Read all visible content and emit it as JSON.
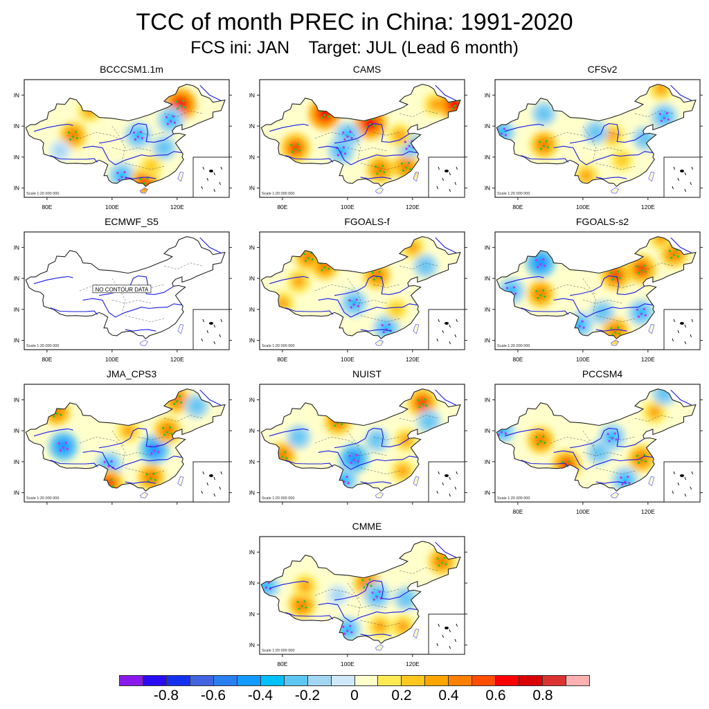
{
  "figure": {
    "title": "TCC of month PREC in China: 1991-2020",
    "subtitle": "FCS ini: JAN    Target: JUL (Lead 6 month)"
  },
  "chart_data": {
    "type": "heatmap",
    "description": "Temporal correlation coefficient (TCC) maps of July precipitation forecasts over China, initialized January (lead 6 months), 1991-2020",
    "xlim": [
      73,
      136
    ],
    "ylim": [
      17,
      55
    ],
    "x_ticks": [
      "80E",
      "100E",
      "120E"
    ],
    "x_tick_values": [
      80,
      100,
      120
    ],
    "y_ticks": [
      "20N",
      "30N",
      "40N",
      "50N"
    ],
    "y_tick_values": [
      20,
      30,
      40,
      50
    ],
    "scale_text": "Scale 1:20 000 000",
    "no_data_text": "NO CONTOUR DATA",
    "panels": [
      {
        "name": "BCCCSM1.1m",
        "show_xticks": true,
        "has_data": true,
        "features": [
          {
            "lon": 121,
            "lat": 47,
            "value": 0.6
          },
          {
            "lon": 88,
            "lat": 37,
            "value": 0.4
          },
          {
            "lon": 93,
            "lat": 45,
            "value": 0.3
          },
          {
            "lon": 108,
            "lat": 37,
            "value": -0.4
          },
          {
            "lon": 118,
            "lat": 42,
            "value": -0.4
          },
          {
            "lon": 116,
            "lat": 33,
            "value": -0.3
          },
          {
            "lon": 103,
            "lat": 24,
            "value": -0.4
          },
          {
            "lon": 110,
            "lat": 22,
            "value": 0.5
          },
          {
            "lon": 112,
            "lat": 27,
            "value": 0.2
          },
          {
            "lon": 84,
            "lat": 32,
            "value": -0.2
          }
        ]
      },
      {
        "name": "CAMS",
        "show_xticks": true,
        "has_data": true,
        "features": [
          {
            "lon": 84,
            "lat": 33,
            "value": 0.5
          },
          {
            "lon": 93,
            "lat": 44,
            "value": 0.6
          },
          {
            "lon": 107,
            "lat": 41,
            "value": 0.6
          },
          {
            "lon": 110,
            "lat": 26,
            "value": 0.4
          },
          {
            "lon": 118,
            "lat": 27,
            "value": 0.4
          },
          {
            "lon": 127,
            "lat": 47,
            "value": 0.3
          },
          {
            "lon": 133,
            "lat": 47,
            "value": 0.6
          },
          {
            "lon": 100,
            "lat": 37,
            "value": -0.4
          },
          {
            "lon": 98,
            "lat": 32,
            "value": -0.4
          },
          {
            "lon": 119,
            "lat": 34,
            "value": -0.4
          },
          {
            "lon": 116,
            "lat": 37,
            "value": 0.3
          }
        ]
      },
      {
        "name": "CFSv2",
        "show_xticks": true,
        "has_data": true,
        "features": [
          {
            "lon": 88,
            "lat": 34,
            "value": 0.4
          },
          {
            "lon": 125,
            "lat": 43,
            "value": -0.4
          },
          {
            "lon": 119,
            "lat": 36,
            "value": -0.3
          },
          {
            "lon": 88,
            "lat": 44,
            "value": -0.3
          },
          {
            "lon": 75,
            "lat": 38,
            "value": -0.4
          },
          {
            "lon": 109,
            "lat": 37,
            "value": 0.3
          },
          {
            "lon": 101,
            "lat": 24,
            "value": 0.3
          },
          {
            "lon": 124,
            "lat": 52,
            "value": 0.3
          },
          {
            "lon": 112,
            "lat": 29,
            "value": 0.2
          },
          {
            "lon": 104,
            "lat": 38,
            "value": -0.3
          }
        ]
      },
      {
        "name": "ECMWF_S5",
        "show_xticks": true,
        "has_data": false,
        "features": []
      },
      {
        "name": "FGOALS-f",
        "show_xticks": true,
        "has_data": true,
        "features": [
          {
            "lon": 88,
            "lat": 47,
            "value": 0.4
          },
          {
            "lon": 93,
            "lat": 44,
            "value": 0.4
          },
          {
            "lon": 109,
            "lat": 41,
            "value": 0.4
          },
          {
            "lon": 85,
            "lat": 39,
            "value": 0.3
          },
          {
            "lon": 80,
            "lat": 32,
            "value": 0.3
          },
          {
            "lon": 102,
            "lat": 32,
            "value": -0.4
          },
          {
            "lon": 112,
            "lat": 24,
            "value": -0.4
          },
          {
            "lon": 120,
            "lat": 50,
            "value": 0.3
          },
          {
            "lon": 124,
            "lat": 44,
            "value": -0.3
          },
          {
            "lon": 115,
            "lat": 30,
            "value": 0.2
          }
        ]
      },
      {
        "name": "FGOALS-s2",
        "show_xticks": true,
        "has_data": true,
        "features": [
          {
            "lon": 87,
            "lat": 45,
            "value": -0.5
          },
          {
            "lon": 87,
            "lat": 35,
            "value": 0.4
          },
          {
            "lon": 110,
            "lat": 41,
            "value": 0.5
          },
          {
            "lon": 118,
            "lat": 43,
            "value": 0.5
          },
          {
            "lon": 128,
            "lat": 48,
            "value": 0.4
          },
          {
            "lon": 124,
            "lat": 53,
            "value": 0.3
          },
          {
            "lon": 118,
            "lat": 29,
            "value": -0.4
          },
          {
            "lon": 106,
            "lat": 29,
            "value": -0.3
          },
          {
            "lon": 110,
            "lat": 23,
            "value": 0.4
          },
          {
            "lon": 99,
            "lat": 25,
            "value": -0.4
          },
          {
            "lon": 78,
            "lat": 36,
            "value": -0.4
          }
        ]
      },
      {
        "name": "JMA_CPS3",
        "show_xticks": false,
        "has_data": true,
        "features": [
          {
            "lon": 85,
            "lat": 35,
            "value": -0.5
          },
          {
            "lon": 113,
            "lat": 34,
            "value": -0.5
          },
          {
            "lon": 99,
            "lat": 29,
            "value": -0.4
          },
          {
            "lon": 117,
            "lat": 40,
            "value": 0.4
          },
          {
            "lon": 105,
            "lat": 40,
            "value": 0.3
          },
          {
            "lon": 99,
            "lat": 23,
            "value": 0.5
          },
          {
            "lon": 112,
            "lat": 25,
            "value": 0.4
          },
          {
            "lon": 83,
            "lat": 46,
            "value": 0.4
          },
          {
            "lon": 120,
            "lat": 50,
            "value": 0.4
          },
          {
            "lon": 126,
            "lat": 48,
            "value": -0.3
          }
        ]
      },
      {
        "name": "NUIST",
        "show_xticks": false,
        "has_data": true,
        "features": [
          {
            "lon": 123,
            "lat": 49,
            "value": 0.5
          },
          {
            "lon": 102,
            "lat": 31,
            "value": -0.5
          },
          {
            "lon": 99,
            "lat": 24,
            "value": -0.4
          },
          {
            "lon": 109,
            "lat": 37,
            "value": -0.3
          },
          {
            "lon": 97,
            "lat": 43,
            "value": 0.4
          },
          {
            "lon": 80,
            "lat": 32,
            "value": 0.4
          },
          {
            "lon": 117,
            "lat": 27,
            "value": 0.3
          },
          {
            "lon": 118,
            "lat": 37,
            "value": 0.3
          },
          {
            "lon": 85,
            "lat": 38,
            "value": -0.3
          },
          {
            "lon": 125,
            "lat": 43,
            "value": -0.3
          }
        ]
      },
      {
        "name": "PCCSM4",
        "show_xticks": true,
        "has_data": true,
        "features": [
          {
            "lon": 87,
            "lat": 37,
            "value": 0.4
          },
          {
            "lon": 95,
            "lat": 29,
            "value": 0.5
          },
          {
            "lon": 118,
            "lat": 31,
            "value": 0.4
          },
          {
            "lon": 109,
            "lat": 38,
            "value": -0.4
          },
          {
            "lon": 113,
            "lat": 24,
            "value": -0.4
          },
          {
            "lon": 122,
            "lat": 46,
            "value": 0.3
          },
          {
            "lon": 125,
            "lat": 52,
            "value": -0.3
          },
          {
            "lon": 75,
            "lat": 40,
            "value": -0.4
          },
          {
            "lon": 105,
            "lat": 33,
            "value": -0.3
          }
        ]
      },
      {
        "name": "CMME",
        "show_xticks": true,
        "has_data": true,
        "features": [
          {
            "lon": 86,
            "lat": 33,
            "value": 0.4
          },
          {
            "lon": 87,
            "lat": 39,
            "value": 0.3
          },
          {
            "lon": 106,
            "lat": 40,
            "value": 0.4
          },
          {
            "lon": 129,
            "lat": 47,
            "value": 0.4
          },
          {
            "lon": 110,
            "lat": 26,
            "value": 0.3
          },
          {
            "lon": 117,
            "lat": 26,
            "value": 0.3
          },
          {
            "lon": 109,
            "lat": 36,
            "value": -0.4
          },
          {
            "lon": 118,
            "lat": 35,
            "value": -0.3
          },
          {
            "lon": 100,
            "lat": 25,
            "value": -0.4
          },
          {
            "lon": 75,
            "lat": 39,
            "value": -0.4
          },
          {
            "lon": 97,
            "lat": 36,
            "value": -0.2
          }
        ]
      }
    ],
    "colorbar": {
      "levels": [
        -0.9,
        -0.8,
        -0.7,
        -0.6,
        -0.5,
        -0.4,
        -0.3,
        -0.2,
        -0.1,
        0,
        0.1,
        0.2,
        0.3,
        0.4,
        0.5,
        0.6,
        0.7,
        0.8,
        0.9
      ],
      "colors": [
        "#8a1aeb",
        "#2a0cf2",
        "#1431f0",
        "#4264e0",
        "#2a7ff0",
        "#139bff",
        "#00c0ff",
        "#5ec6f2",
        "#a2d6f2",
        "#d0e9f8",
        "#ffffcc",
        "#ffea55",
        "#ffc81e",
        "#ffa500",
        "#ff7f00",
        "#ff4d00",
        "#ff0000",
        "#d90000",
        "#dc3232",
        "#ffb0b0"
      ],
      "tick_labels": [
        "-0.8",
        "-0.6",
        "-0.4",
        "-0.2",
        "0",
        "0.2",
        "0.4",
        "0.6",
        "0.8"
      ],
      "tick_values": [
        -0.8,
        -0.6,
        -0.4,
        -0.2,
        0,
        0.2,
        0.4,
        0.6,
        0.8
      ],
      "range": [
        -1,
        1
      ]
    },
    "significance_markers": {
      "positive_color": "#22cc22",
      "negative_color": "#bb33ee"
    }
  }
}
